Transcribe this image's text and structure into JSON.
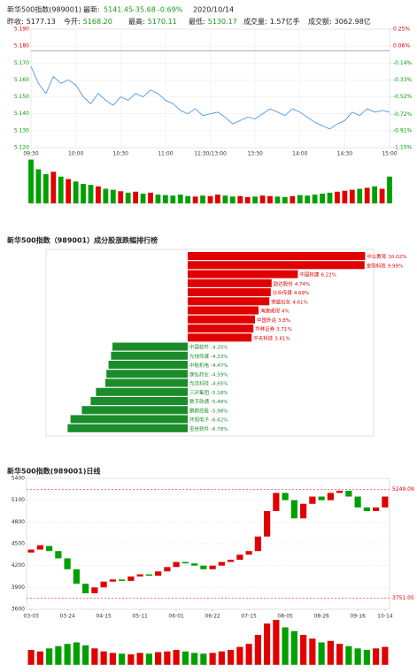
{
  "header": {
    "name": "新华500指数(989001)",
    "latest_label": "最新:",
    "latest": "5141.45",
    "change": "-35.68",
    "pct": "-0.69%",
    "date": "2020/10/14",
    "stats": [
      {
        "label": "昨收:",
        "value": "5177.13"
      },
      {
        "label": "今开:",
        "value": "5168.20"
      },
      {
        "label": "最高:",
        "value": "5170.11"
      },
      {
        "label": "最低:",
        "value": "5130.17"
      },
      {
        "label": "成交量:",
        "value": "1.57亿手"
      },
      {
        "label": "成交额:",
        "value": "3062.98亿"
      }
    ]
  },
  "chart_data": [
    {
      "type": "line",
      "color": "#3a8ee6",
      "up_color": "#e00000",
      "down_color": "#00a000",
      "x": [
        0,
        5,
        10,
        15,
        20,
        25,
        30,
        35,
        40,
        45,
        50,
        55,
        60,
        65,
        70,
        75,
        80,
        85,
        90,
        95,
        100,
        105,
        110,
        115,
        120,
        125,
        130,
        135,
        140,
        145,
        150,
        155,
        160,
        165,
        170,
        175,
        180,
        185,
        190,
        195,
        200,
        205,
        210,
        215,
        220,
        225,
        230,
        235,
        240
      ],
      "values": [
        5.168,
        5.158,
        5.152,
        5.162,
        5.158,
        5.16,
        5.157,
        5.15,
        5.146,
        5.152,
        5.148,
        5.145,
        5.15,
        5.148,
        5.152,
        5.15,
        5.154,
        5.152,
        5.148,
        5.146,
        5.142,
        5.14,
        5.143,
        5.139,
        5.14,
        5.141,
        5.138,
        5.134,
        5.136,
        5.138,
        5.137,
        5.14,
        5.143,
        5.141,
        5.139,
        5.143,
        5.141,
        5.138,
        5.135,
        5.133,
        5.131,
        5.134,
        5.136,
        5.141,
        5.139,
        5.143,
        5.141,
        5.142,
        5.141
      ],
      "volume": [
        90,
        70,
        60,
        65,
        55,
        50,
        45,
        40,
        38,
        35,
        30,
        28,
        25,
        22,
        24,
        20,
        22,
        18,
        17,
        16,
        18,
        15,
        14,
        16,
        15,
        18,
        16,
        14,
        15,
        13,
        14,
        16,
        15,
        14,
        13,
        15,
        17,
        16,
        18,
        20,
        22,
        24,
        26,
        28,
        30,
        32,
        35,
        30,
        55
      ],
      "reference_line": 5.17713,
      "xlim": [
        0,
        240
      ],
      "xticks": [
        {
          "value": 0,
          "label": "09:30"
        },
        {
          "value": 30,
          "label": "10:00"
        },
        {
          "value": 60,
          "label": "10:30"
        },
        {
          "value": 90,
          "label": "11:00"
        },
        {
          "value": 120,
          "label": "11:30/13:00"
        },
        {
          "value": 150,
          "label": "13:30"
        },
        {
          "value": 180,
          "label": "14:00"
        },
        {
          "value": 210,
          "label": "14:30"
        },
        {
          "value": 240,
          "label": "15:00"
        }
      ],
      "ylim": [
        5.12,
        5.19
      ],
      "yticks": [
        {
          "value": 5.19,
          "label": "5.190"
        },
        {
          "value": 5.18,
          "label": "5.180"
        },
        {
          "value": 5.17,
          "label": "5.170"
        },
        {
          "value": 5.16,
          "label": "5.160"
        },
        {
          "value": 5.15,
          "label": "5.150"
        },
        {
          "value": 5.14,
          "label": "5.140"
        },
        {
          "value": 5.13,
          "label": "5.130"
        },
        {
          "value": 5.12,
          "label": "5.120"
        }
      ],
      "y2lim": [
        -1.1,
        0.25
      ],
      "y2ticks": [
        {
          "value": 0.25,
          "label": "0.25%"
        },
        {
          "value": 0.06,
          "label": "0.06%"
        },
        {
          "value": -0.14,
          "label": "-0.14%"
        },
        {
          "value": -0.33,
          "label": "-0.33%"
        },
        {
          "value": -0.52,
          "label": "-0.52%"
        },
        {
          "value": -0.72,
          "label": "-0.72%"
        },
        {
          "value": -0.91,
          "label": "-0.91%"
        },
        {
          "value": -1.1,
          "label": "-1.10%"
        }
      ],
      "grid": true
    },
    {
      "type": "bar",
      "orientation": "horizontal",
      "title": "新华500指数（989001）成分股涨跌幅排行榜",
      "up_color": "#e00000",
      "down_color": "#1a8c2a",
      "categories": [
        "中公教育",
        "金阳科技",
        "中国核建",
        "韵达股份",
        "分众传媒",
        "荣盛石化",
        "海康威视",
        "中国外运",
        "华林证券",
        "中天科技",
        "中国软件",
        "光线传媒",
        "中航机电",
        "康弘药业",
        "光迅科技",
        "三环集团",
        "数字政通",
        "鹏鼎控股",
        "环旭电子",
        "宝信软件"
      ],
      "values": [
        10.02,
        9.99,
        6.22,
        4.74,
        4.69,
        4.61,
        4,
        3.8,
        3.71,
        3.61,
        -4.25,
        -4.33,
        -4.47,
        -4.59,
        -4.65,
        -5.18,
        -5.48,
        -5.98,
        -6.62,
        -6.78
      ],
      "value_labels": [
        "10.02%",
        "9.99%",
        "6.22%",
        "4.74%",
        "4.69%",
        "4.61%",
        "4%",
        "3.8%",
        "3.71%",
        "3.61%",
        "-4.25%",
        "-4.33%",
        "-4.47%",
        "-4.59%",
        "-4.65%",
        "-5.18%",
        "-5.48%",
        "-5.98%",
        "-6.62%",
        "-6.78%"
      ],
      "xlim": [
        -8,
        10.5
      ]
    },
    {
      "type": "candlestick",
      "title": "新华500指数(989001)日线",
      "up_color": "#e00000",
      "down_color": "#00a000",
      "open": [
        4380,
        4420,
        4470,
        4400,
        4300,
        4150,
        3950,
        3820,
        3900,
        3980,
        4010,
        3990,
        4050,
        4080,
        4060,
        4120,
        4180,
        4250,
        4230,
        4200,
        4150,
        4200,
        4250,
        4280,
        4350,
        4400,
        4600,
        4950,
        5200,
        5100,
        4850,
        5050,
        5150,
        5100,
        5200,
        5230,
        5150,
        5000,
        4950,
        5000
      ],
      "close": [
        4420,
        4480,
        4400,
        4300,
        4150,
        3950,
        3820,
        3900,
        3980,
        4010,
        3990,
        4050,
        4080,
        4060,
        4120,
        4180,
        4250,
        4230,
        4200,
        4150,
        4200,
        4250,
        4280,
        4350,
        4400,
        4600,
        4950,
        5200,
        5100,
        4850,
        5050,
        5150,
        5100,
        5200,
        5230,
        5150,
        5000,
        4950,
        5000,
        5150
      ],
      "volume": [
        20,
        18,
        22,
        25,
        28,
        30,
        26,
        22,
        18,
        16,
        15,
        14,
        16,
        15,
        17,
        18,
        20,
        18,
        16,
        15,
        16,
        18,
        20,
        24,
        28,
        40,
        55,
        60,
        50,
        45,
        40,
        35,
        30,
        32,
        28,
        25,
        22,
        20,
        22,
        24
      ],
      "ylim": [
        3600,
        5400
      ],
      "yticks": [
        3600,
        3900,
        4200,
        4500,
        4800,
        5100,
        5400
      ],
      "xticks": [
        {
          "value": 0,
          "label": "03-03"
        },
        {
          "value": 4,
          "label": "03-24"
        },
        {
          "value": 8,
          "label": "04-15"
        },
        {
          "value": 12,
          "label": "05-11"
        },
        {
          "value": 16,
          "label": "06-01"
        },
        {
          "value": 20,
          "label": "06-22"
        },
        {
          "value": 24,
          "label": "07-15"
        },
        {
          "value": 28,
          "label": "08-05"
        },
        {
          "value": 32,
          "label": "08-26"
        },
        {
          "value": 36,
          "label": "09-16"
        },
        {
          "value": 39,
          "label": "10-14"
        }
      ],
      "annotations": [
        {
          "value": 5249.09,
          "label": "5249.09"
        },
        {
          "value": 3751.05,
          "label": "3751.05"
        }
      ],
      "grid": true
    }
  ]
}
